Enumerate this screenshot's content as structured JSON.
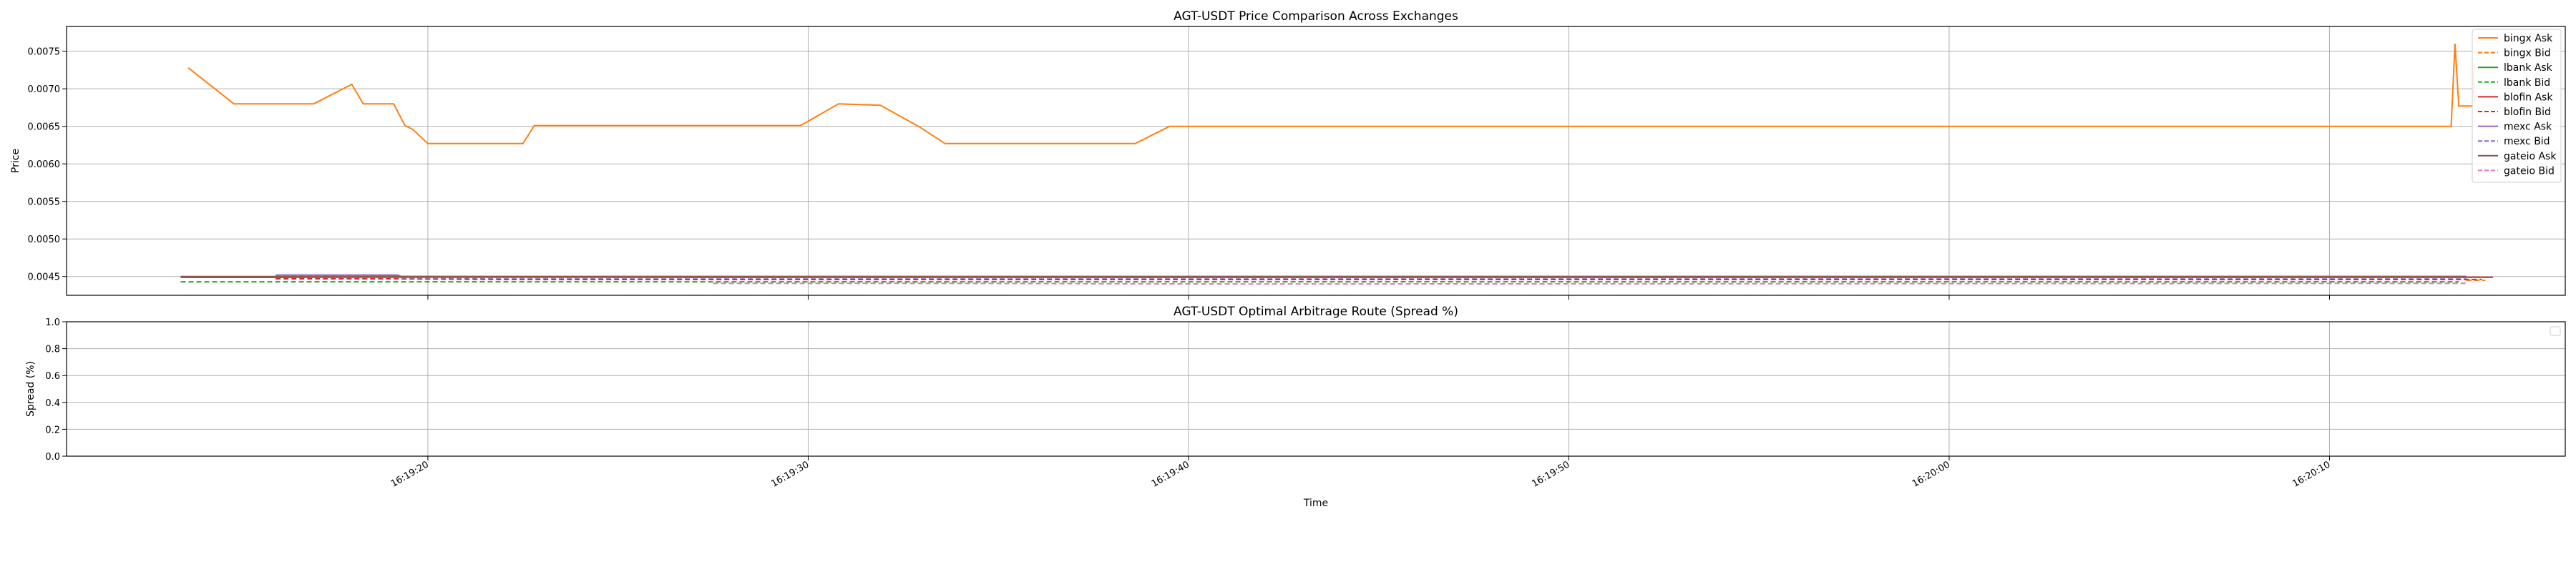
{
  "chart_data": [
    {
      "type": "line",
      "title": "AGT-USDT Price Comparison Across Exchanges",
      "xlabel": "",
      "ylabel": "Price",
      "xlim": [
        "16:19:10.5",
        "16:20:16.2"
      ],
      "ylim": [
        0.00425,
        0.00783
      ],
      "yticks": [
        "0.0045",
        "0.0050",
        "0.0055",
        "0.0060",
        "0.0065",
        "0.0070",
        "0.0075"
      ],
      "ytick_values": [
        0.0045,
        0.005,
        0.0055,
        0.006,
        0.0065,
        0.007,
        0.0075
      ],
      "xticks": [
        "16:19:20",
        "16:19:30",
        "16:19:40",
        "16:19:50",
        "16:20:00",
        "16:20:10"
      ],
      "xtick_values": [
        20,
        30,
        40,
        50,
        60,
        70
      ],
      "x_unit_note": "seconds after 16:19:00",
      "grid": true,
      "legend_position": "top-right",
      "series": [
        {
          "name": "bingx Ask",
          "color": "#ff7f0e",
          "dash": "solid",
          "x": [
            13.7,
            14.9,
            17.0,
            18.0,
            18.3,
            19.1,
            19.4,
            19.6,
            20.0,
            22.5,
            22.8,
            29.8,
            30.8,
            31.9,
            32.9,
            33.6,
            38.6,
            39.5,
            73.2,
            73.3,
            73.4,
            73.8,
            73.8
          ],
          "y": [
            0.00728,
            0.0068,
            0.0068,
            0.00706,
            0.0068,
            0.0068,
            0.00651,
            0.00646,
            0.00627,
            0.00627,
            0.00651,
            0.00651,
            0.0068,
            0.00678,
            0.0065,
            0.00627,
            0.00627,
            0.0065,
            0.0065,
            0.0076,
            0.00677,
            0.00677,
            0.00733
          ]
        },
        {
          "name": "bingx Bid",
          "color": "#ff7f0e",
          "dash": "dashed",
          "x": [
            73.6,
            74.1
          ],
          "y": [
            0.00445,
            0.00445
          ]
        },
        {
          "name": "lbank Ask",
          "color": "#2ca02c",
          "dash": "solid",
          "x": [
            13.5,
            73.4
          ],
          "y": [
            0.00449,
            0.00449
          ]
        },
        {
          "name": "lbank Bid",
          "color": "#2ca02c",
          "dash": "dashed",
          "x": [
            13.5,
            73.4
          ],
          "y": [
            0.00443,
            0.00443
          ]
        },
        {
          "name": "blofin Ask",
          "color": "#d62728",
          "dash": "solid",
          "x": [
            13.5,
            16.0,
            19.0,
            27.0,
            30.0,
            74.3
          ],
          "y": [
            0.00449,
            0.00449,
            0.0045,
            0.00449,
            0.00449,
            0.00449
          ]
        },
        {
          "name": "blofin Bid",
          "color": "#d62728",
          "dash": "dashed",
          "x": [
            16.0,
            19.2,
            22.0,
            30.0,
            74.0
          ],
          "y": [
            0.00447,
            0.00447,
            0.00446,
            0.00446,
            0.00446
          ]
        },
        {
          "name": "mexc Ask",
          "color": "#9467bd",
          "dash": "solid",
          "x": [
            16.0,
            19.2,
            19.3,
            73.6
          ],
          "y": [
            0.00452,
            0.00452,
            0.0045,
            0.0045
          ]
        },
        {
          "name": "mexc Bid",
          "color": "#9467bd",
          "dash": "dashed",
          "x": [
            16.0,
            19.2,
            19.3,
            73.6
          ],
          "y": [
            0.0045,
            0.0045,
            0.00448,
            0.00448
          ]
        },
        {
          "name": "gateio Ask",
          "color": "#8c564b",
          "dash": "solid",
          "x": [
            13.5,
            73.6
          ],
          "y": [
            0.0045,
            0.0045
          ]
        },
        {
          "name": "gateio Bid",
          "color": "#e377c2",
          "dash": "dashed",
          "x": [
            27.5,
            33.0,
            41.5,
            73.6
          ],
          "y": [
            0.00441,
            0.00441,
            0.0044,
            0.00441
          ]
        }
      ]
    },
    {
      "type": "line",
      "title": "AGT-USDT Optimal Arbitrage Route (Spread %)",
      "xlabel": "Time",
      "ylabel": "Spread (%)",
      "ylim": [
        0.0,
        1.0
      ],
      "yticks": [
        "0.0",
        "0.2",
        "0.4",
        "0.6",
        "0.8",
        "1.0"
      ],
      "ytick_values": [
        0.0,
        0.2,
        0.4,
        0.6,
        0.8,
        1.0
      ],
      "xticks": [
        "16:19:20",
        "16:19:30",
        "16:19:40",
        "16:19:50",
        "16:20:00",
        "16:20:10"
      ],
      "xtick_values": [
        20,
        30,
        40,
        50,
        60,
        70
      ],
      "grid": true,
      "legend_position": "top-right",
      "series": []
    }
  ]
}
